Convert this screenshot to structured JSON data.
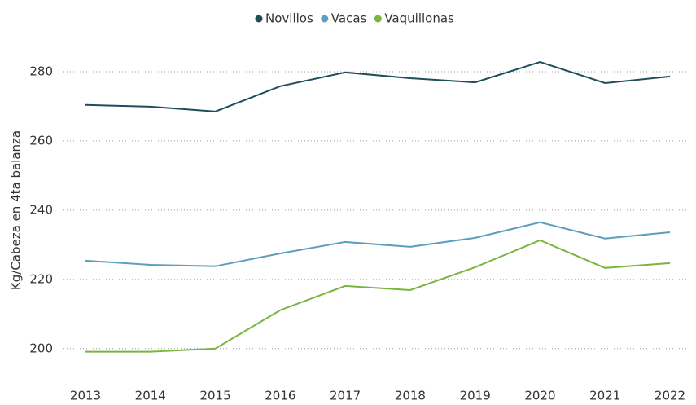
{
  "chart_data": {
    "type": "line",
    "categories": [
      "2013",
      "2014",
      "2015",
      "2016",
      "2017",
      "2018",
      "2019",
      "2020",
      "2021",
      "2022"
    ],
    "series": [
      {
        "name": "Novillos",
        "color": "#1e4d5b",
        "values": [
          270.4,
          269.9,
          268.5,
          275.8,
          279.8,
          278.1,
          276.9,
          282.8,
          276.7,
          278.6
        ]
      },
      {
        "name": "Vacas",
        "color": "#5b9fbd",
        "values": [
          225.4,
          224.2,
          223.8,
          227.5,
          230.8,
          229.4,
          232.0,
          236.5,
          231.8,
          233.6
        ]
      },
      {
        "name": "Vaquillonas",
        "color": "#7ab540",
        "values": [
          199.1,
          199.1,
          200.0,
          211.1,
          218.1,
          216.9,
          223.5,
          231.3,
          223.3,
          224.7
        ]
      }
    ],
    "y_label": "Kg/Cabeza en 4ta balanza",
    "ylim": [
      195,
      292
    ],
    "yticks": [
      200,
      220,
      240,
      260,
      280
    ],
    "grid": true,
    "legend": "top"
  }
}
